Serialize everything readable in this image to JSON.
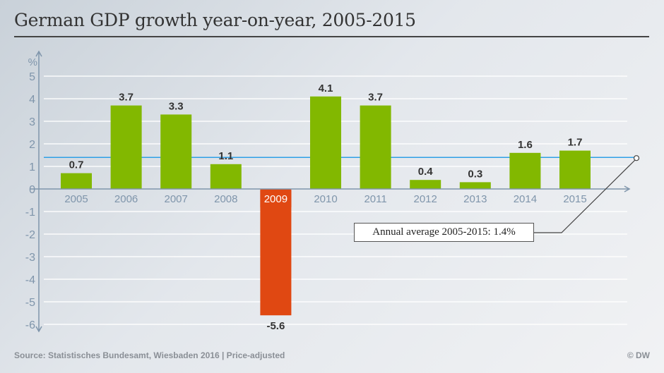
{
  "title": "German GDP growth year-on-year, 2005-2015",
  "source": "Source: Statistisches Bundesamt, Wiesbaden 2016 | Price-adjusted",
  "credit": "© DW",
  "colors": {
    "positive": "#82b800",
    "negative": "#e04812",
    "average": "#2fa0e6",
    "axis": "#7f95ab",
    "grid": "#ffffff"
  },
  "chart_data": {
    "type": "bar",
    "title": "German GDP growth year-on-year, 2005-2015",
    "ylabel": "%",
    "categories": [
      "2005",
      "2006",
      "2007",
      "2008",
      "2009",
      "2010",
      "2011",
      "2012",
      "2013",
      "2014",
      "2015"
    ],
    "values": [
      0.7,
      3.7,
      3.3,
      1.1,
      -5.6,
      4.1,
      3.7,
      0.4,
      0.3,
      1.6,
      1.7
    ],
    "data_labels": [
      "0.7",
      "3.7",
      "3.3",
      "1.1",
      "-5.6",
      "4.1",
      "3.7",
      "0.4",
      "0.3",
      "1.6",
      "1.7"
    ],
    "ylim": [
      -6,
      5
    ],
    "yticks": [
      "5",
      "4",
      "3",
      "2",
      "1",
      "0",
      "-1",
      "-2",
      "-3",
      "-4",
      "-5",
      "-6"
    ],
    "ytick_values": [
      5,
      4,
      3,
      2,
      1,
      0,
      -1,
      -2,
      -3,
      -4,
      -5,
      -6
    ],
    "grid": true,
    "average": {
      "value": 1.4,
      "label": "Annual average 2005-2015: 1.4%"
    }
  }
}
